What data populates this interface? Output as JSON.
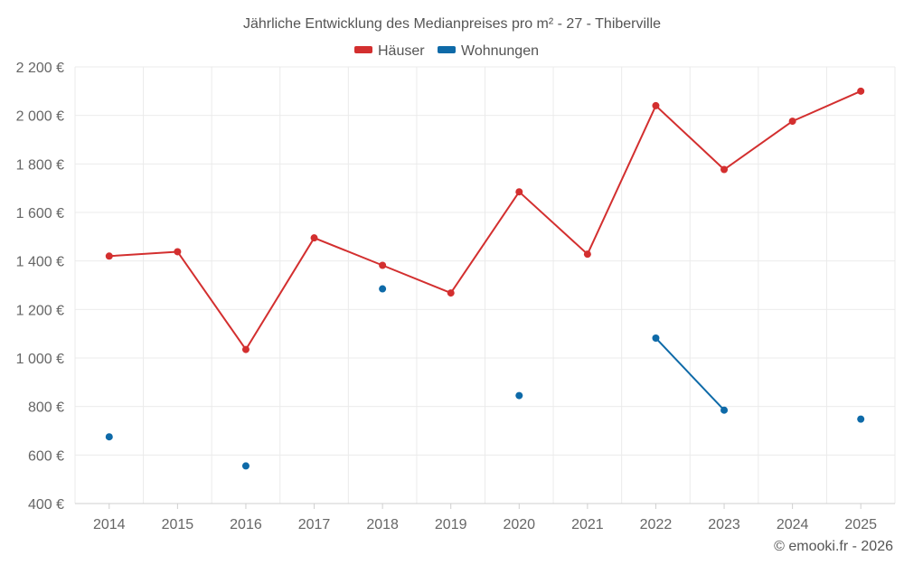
{
  "chart_data": {
    "type": "line",
    "title": "Jährliche Entwicklung des Medianpreises pro m² - 27 - Thiberville",
    "categories": [
      "2014",
      "2015",
      "2016",
      "2017",
      "2018",
      "2019",
      "2020",
      "2021",
      "2022",
      "2023",
      "2024",
      "2025"
    ],
    "series": [
      {
        "name": "Häuser",
        "color": "#d32f2f",
        "values": [
          1420,
          1438,
          1035,
          1495,
          1382,
          1268,
          1685,
          1428,
          2040,
          1777,
          1976,
          2100
        ]
      },
      {
        "name": "Wohnungen",
        "color": "#0e6aa8",
        "values": [
          675,
          null,
          555,
          null,
          1285,
          null,
          845,
          null,
          1082,
          785,
          null,
          748
        ]
      }
    ],
    "ylim": [
      400,
      2200
    ],
    "yticks": [
      400,
      600,
      800,
      1000,
      1200,
      1400,
      1600,
      1800,
      2000,
      2200
    ],
    "ytick_labels": [
      "400 €",
      "600 €",
      "800 €",
      "1 000 €",
      "1 200 €",
      "1 400 €",
      "1 600 €",
      "1 800 €",
      "2 000 €",
      "2 200 €"
    ],
    "xlabel": "",
    "ylabel": "",
    "grid": true,
    "legend_position": "top-center"
  },
  "credit": "© emooki.fr - 2026"
}
